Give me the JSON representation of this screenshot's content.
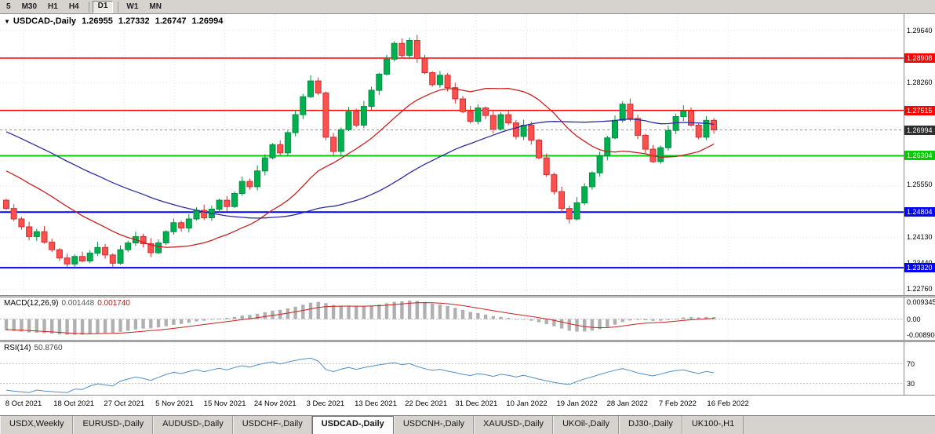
{
  "toolbar": {
    "buttons": [
      {
        "label": "5",
        "active": false
      },
      {
        "label": "M30",
        "active": false
      },
      {
        "label": "H1",
        "active": false
      },
      {
        "label": "H4",
        "active": false
      },
      {
        "label": "D1",
        "active": true
      },
      {
        "label": "W1",
        "active": false
      },
      {
        "label": "MN",
        "active": false
      }
    ]
  },
  "title": {
    "caret": "▼",
    "symbol": "USDCAD-,Daily",
    "open": "1.26955",
    "high": "1.27332",
    "low": "1.26747",
    "close": "1.26994"
  },
  "chart_data": {
    "type": "candlestick",
    "symbol": "USDCAD-",
    "timeframe": "Daily",
    "x_labels": [
      "8 Oct 2021",
      "18 Oct 2021",
      "27 Oct 2021",
      "5 Nov 2021",
      "15 Nov 2021",
      "24 Nov 2021",
      "3 Dec 2021",
      "13 Dec 2021",
      "22 Dec 2021",
      "31 Dec 2021",
      "10 Jan 2022",
      "19 Jan 2022",
      "28 Jan 2022",
      "7 Feb 2022",
      "16 Feb 2022"
    ],
    "first_open": 1.2512,
    "closes": [
      1.249,
      1.2462,
      1.2441,
      1.2415,
      1.2428,
      1.24,
      1.238,
      1.2358,
      1.2342,
      1.2362,
      1.235,
      1.2371,
      1.2386,
      1.2366,
      1.2344,
      1.238,
      1.2398,
      1.2415,
      1.2396,
      1.2372,
      1.2398,
      1.2428,
      1.2452,
      1.2438,
      1.2462,
      1.2485,
      1.2465,
      1.2488,
      1.2512,
      1.2495,
      1.253,
      1.2562,
      1.2548,
      1.259,
      1.2625,
      1.266,
      1.2638,
      1.2692,
      1.274,
      1.2788,
      1.283,
      1.2798,
      1.268,
      1.2642,
      1.27,
      1.2748,
      1.2712,
      1.2762,
      1.2805,
      1.2848,
      1.2888,
      1.293,
      1.2898,
      1.2938,
      1.289,
      1.2852,
      1.282,
      1.2845,
      1.2812,
      1.2782,
      1.2748,
      1.2722,
      1.2758,
      1.2738,
      1.2702,
      1.274,
      1.2718,
      1.2682,
      1.2712,
      1.2672,
      1.2625,
      1.258,
      1.2535,
      1.249,
      1.2462,
      1.2505,
      1.2548,
      1.2585,
      1.263,
      1.2678,
      1.2725,
      1.2768,
      1.273,
      1.2685,
      1.2648,
      1.2615,
      1.2652,
      1.2698,
      1.2735,
      1.275,
      1.2712,
      1.268,
      1.2725,
      1.26994
    ],
    "pre_closes": [
      1.2868,
      1.2875,
      1.286,
      1.2852,
      1.2858,
      1.284,
      1.283,
      1.2838,
      1.282,
      1.2805,
      1.2812,
      1.2795,
      1.278,
      1.2788,
      1.277,
      1.2755,
      1.2762,
      1.2745,
      1.273,
      1.2738,
      1.272,
      1.2705,
      1.2712,
      1.2695,
      1.268,
      1.2688,
      1.267,
      1.2655,
      1.2662,
      1.2645,
      1.263,
      1.2638,
      1.262,
      1.2605,
      1.2612,
      1.2595,
      1.258,
      1.2588,
      1.257,
      1.2555,
      1.2562,
      1.2545,
      1.253,
      1.2538,
      1.251
    ],
    "price_axis": {
      "y_range": [
        1.2259,
        1.3008
      ]
    },
    "scale_ticks": [
      {
        "label": "1.29640",
        "price": 1.2964
      },
      {
        "label": "1.28260",
        "price": 1.2826
      },
      {
        "label": "1.25550",
        "price": 1.2555
      },
      {
        "label": "1.24130",
        "price": 1.2413
      },
      {
        "label": "1.23440",
        "price": 1.2344
      },
      {
        "label": "1.22760",
        "price": 1.2276
      }
    ],
    "grid_prices": [
      1.2964,
      1.2895,
      1.2826,
      1.2757,
      1.2688,
      1.2619,
      1.255,
      1.2481,
      1.2412,
      1.2343,
      1.2274
    ],
    "hlines": [
      {
        "price": 1.28908,
        "label": "1.28908",
        "color": "#ff0000",
        "width": 1.5
      },
      {
        "price": 1.27515,
        "label": "1.27515",
        "color": "#ff0000",
        "width": 1.5
      },
      {
        "price": 1.26304,
        "label": "1.26304",
        "color": "#00cc00",
        "width": 2
      },
      {
        "price": 1.24804,
        "label": "1.24804",
        "color": "#0000ff",
        "width": 2
      },
      {
        "price": 1.2332,
        "label": "1.23320",
        "color": "#0000ff",
        "width": 2
      }
    ],
    "current_price": {
      "value": 1.26994,
      "label": "1.26994",
      "color": "#2f2f2f"
    },
    "ma": [
      {
        "period": 20,
        "color": "#c82020"
      },
      {
        "period": 45,
        "color": "#2b2b9e"
      }
    ],
    "macd": {
      "label": "MACD(12,26,9)",
      "value_main": "0.001448",
      "value_signal": "0.001740",
      "fast": 12,
      "slow": 26,
      "signal": 9,
      "range": [
        -0.0089,
        0.009345
      ],
      "scale_labels": [
        "0.009345",
        "0.00",
        "-0.008900"
      ]
    },
    "rsi": {
      "label": "RSI(14)",
      "value": "50.8760",
      "period": 14,
      "levels": [
        70,
        30
      ]
    },
    "colors": {
      "bull": "#00b050",
      "bull_edge": "#008f40",
      "bear": "#ff5050",
      "bear_edge": "#d03030",
      "macd_hist": "#b0b0b0",
      "macd_signal": "#cc2020",
      "rsi": "#4f8fc8",
      "grid": "#e4e4e4"
    }
  },
  "bottom_tabs": {
    "active_index": 4,
    "items": [
      "USDX,Weekly",
      "EURUSD-,Daily",
      "AUDUSD-,Daily",
      "USDCHF-,Daily",
      "USDCAD-,Daily",
      "USDCNH-,Daily",
      "XAUUSD-,Daily",
      "UKOil-,Daily",
      "DJ30-,Daily",
      "UK100-,H1"
    ]
  }
}
